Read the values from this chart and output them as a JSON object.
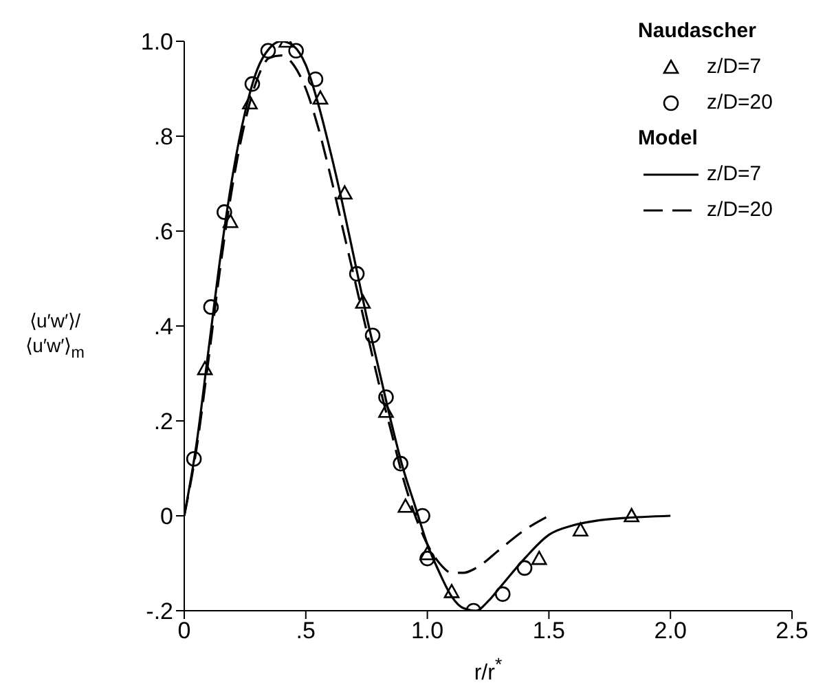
{
  "chart_data": {
    "type": "scatter",
    "xlabel": "r/r$^{*}$",
    "ylabel": "⟨u′w′⟩/⟨u′w′⟩$_{m}$",
    "xlim": [
      0,
      2.5
    ],
    "xticks": [
      {
        "value": 0,
        "label": "0"
      },
      {
        "value": 0.5,
        "label": ".5"
      },
      {
        "value": 1,
        "label": "1.0"
      },
      {
        "value": 1.5,
        "label": "1.5"
      },
      {
        "value": 2,
        "label": "2.0"
      },
      {
        "value": 2.5,
        "label": "2.5"
      }
    ],
    "ylim": [
      -0.2,
      1.0
    ],
    "yticks": [
      {
        "value": -0.2,
        "label": "-.2"
      },
      {
        "value": 0,
        "label": "0"
      },
      {
        "value": 0.2,
        "label": ".2"
      },
      {
        "value": 0.4,
        "label": ".4"
      },
      {
        "value": 0.6,
        "label": ".6"
      },
      {
        "value": 0.8,
        "label": ".8"
      },
      {
        "value": 1,
        "label": "1.0"
      }
    ],
    "legend": "top right",
    "grid": false,
    "annotations": [
      "Naudascher",
      "Model"
    ],
    "series": [
      {
        "name": "z/D=7",
        "marker": "triangle",
        "color": "#000000",
        "x": [
          0.085,
          0.19,
          0.27,
          0.42,
          0.56,
          0.66,
          0.735,
          0.83,
          0.91,
          1.0,
          1.1,
          1.46,
          1.63,
          1.84
        ],
        "values": [
          0.31,
          0.62,
          0.87,
          1.0,
          0.88,
          0.68,
          0.45,
          0.22,
          0.02,
          -0.08,
          -0.16,
          -0.09,
          -0.03,
          0.0
        ]
      },
      {
        "name": "z/D=20",
        "marker": "circle",
        "color": "#000000",
        "x": [
          0.04,
          0.11,
          0.165,
          0.28,
          0.345,
          0.46,
          0.54,
          0.71,
          0.775,
          0.83,
          0.89,
          0.98,
          1.0,
          1.19,
          1.31,
          1.4
        ],
        "values": [
          0.12,
          0.44,
          0.64,
          0.91,
          0.98,
          0.98,
          0.92,
          0.51,
          0.38,
          0.25,
          0.11,
          0.0,
          -0.09,
          -0.2,
          -0.165,
          -0.11
        ]
      },
      {
        "name": "z/D=7",
        "type": "line",
        "line_style": "solid",
        "color": "#000000",
        "x": [
          0,
          0.05,
          0.1,
          0.15,
          0.2,
          0.25,
          0.3,
          0.35,
          0.4,
          0.45,
          0.5,
          0.55,
          0.6,
          0.65,
          0.7,
          0.75,
          0.8,
          0.85,
          0.9,
          0.95,
          1.0,
          1.05,
          1.1,
          1.15,
          1.2,
          1.25,
          1.3,
          1.4,
          1.5,
          1.6,
          1.7,
          1.8,
          2.0
        ],
        "values": [
          0,
          0.15,
          0.35,
          0.55,
          0.72,
          0.85,
          0.94,
          0.985,
          1.0,
          0.99,
          0.95,
          0.87,
          0.77,
          0.66,
          0.54,
          0.42,
          0.31,
          0.2,
          0.1,
          0.02,
          -0.06,
          -0.12,
          -0.17,
          -0.195,
          -0.2,
          -0.18,
          -0.15,
          -0.09,
          -0.04,
          -0.02,
          -0.01,
          -0.005,
          0
        ]
      },
      {
        "name": "z/D=20",
        "type": "line",
        "line_style": "dashed",
        "color": "#000000",
        "x": [
          0,
          0.05,
          0.1,
          0.15,
          0.2,
          0.25,
          0.3,
          0.35,
          0.4,
          0.45,
          0.5,
          0.55,
          0.6,
          0.65,
          0.7,
          0.75,
          0.8,
          0.85,
          0.9,
          0.95,
          1.0,
          1.05,
          1.1,
          1.15,
          1.2,
          1.3,
          1.4,
          1.5
        ],
        "values": [
          0,
          0.14,
          0.33,
          0.53,
          0.7,
          0.83,
          0.92,
          0.965,
          0.97,
          0.95,
          0.9,
          0.82,
          0.72,
          0.61,
          0.5,
          0.39,
          0.28,
          0.18,
          0.08,
          0.0,
          -0.06,
          -0.1,
          -0.12,
          -0.12,
          -0.11,
          -0.07,
          -0.03,
          0.0
        ]
      }
    ]
  }
}
